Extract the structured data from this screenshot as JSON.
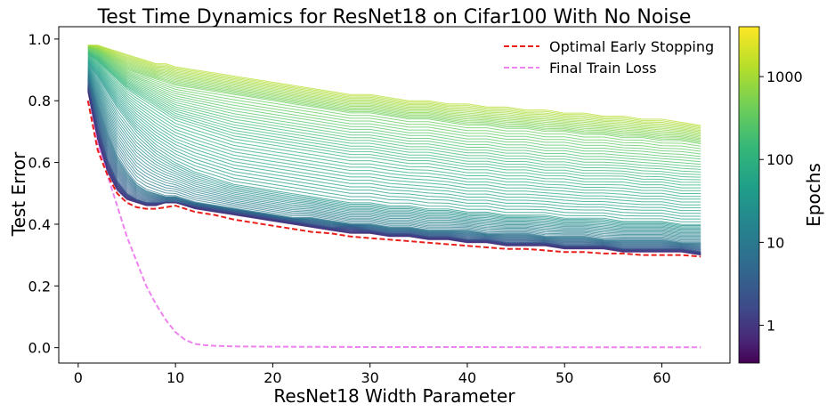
{
  "chart_data": {
    "type": "line",
    "title": "Test Time Dynamics for ResNet18 on Cifar100 With No Noise",
    "xlabel": "ResNet18 Width Parameter",
    "ylabel": "Test Error",
    "xlim": [
      -2,
      67
    ],
    "ylim": [
      -0.05,
      1.04
    ],
    "x_ticks": [
      0,
      10,
      20,
      30,
      40,
      50,
      60
    ],
    "x_tick_labels": [
      "0",
      "10",
      "20",
      "30",
      "40",
      "50",
      "60"
    ],
    "y_ticks": [
      0.0,
      0.2,
      0.4,
      0.6,
      0.8,
      1.0
    ],
    "y_tick_labels": [
      "0.0",
      "0.2",
      "0.4",
      "0.6",
      "0.8",
      "1.0"
    ],
    "grid": false,
    "legend": {
      "position": "top-right",
      "entries": [
        {
          "label": "Optimal Early Stopping",
          "color": "#e8211c",
          "style": "dashed"
        },
        {
          "label": "Final Train Loss",
          "color": "#ee82ee",
          "style": "dashed"
        }
      ]
    },
    "series": [
      {
        "name": "Optimal Early Stopping",
        "color": "#e8211c",
        "style": "dashed",
        "x": [
          1,
          2,
          3,
          4,
          5,
          6,
          7,
          8,
          9,
          10,
          12,
          14,
          16,
          18,
          20,
          22,
          24,
          26,
          28,
          30,
          32,
          34,
          36,
          38,
          40,
          42,
          44,
          46,
          48,
          50,
          52,
          54,
          56,
          58,
          60,
          62,
          64
        ],
        "values": [
          0.8,
          0.64,
          0.56,
          0.5,
          0.47,
          0.455,
          0.45,
          0.45,
          0.455,
          0.46,
          0.44,
          0.43,
          0.415,
          0.405,
          0.395,
          0.385,
          0.375,
          0.37,
          0.36,
          0.355,
          0.35,
          0.345,
          0.34,
          0.335,
          0.33,
          0.325,
          0.32,
          0.32,
          0.315,
          0.31,
          0.31,
          0.305,
          0.305,
          0.3,
          0.3,
          0.3,
          0.295
        ]
      },
      {
        "name": "Final Train Loss",
        "color": "#ee82ee",
        "style": "dashed",
        "x": [
          1,
          2,
          3,
          4,
          5,
          6,
          7,
          8,
          9,
          10,
          11,
          12,
          13,
          14,
          16,
          20,
          30,
          40,
          50,
          64
        ],
        "values": [
          0.8,
          0.66,
          0.56,
          0.46,
          0.36,
          0.28,
          0.2,
          0.14,
          0.09,
          0.05,
          0.025,
          0.012,
          0.008,
          0.006,
          0.004,
          0.003,
          0.002,
          0.002,
          0.001,
          0.001
        ]
      }
    ],
    "epoch_curves_x": [
      1,
      2,
      3,
      4,
      5,
      6,
      7,
      8,
      9,
      10,
      12,
      14,
      16,
      18,
      20,
      22,
      24,
      26,
      28,
      30,
      32,
      34,
      36,
      38,
      40,
      42,
      44,
      46,
      48,
      50,
      52,
      54,
      56,
      58,
      60,
      62,
      64
    ],
    "epoch_curves": [
      {
        "epochs": 1,
        "values": [
          0.98,
          0.98,
          0.97,
          0.96,
          0.95,
          0.94,
          0.93,
          0.92,
          0.92,
          0.91,
          0.9,
          0.89,
          0.88,
          0.87,
          0.86,
          0.85,
          0.84,
          0.83,
          0.82,
          0.82,
          0.81,
          0.8,
          0.8,
          0.79,
          0.79,
          0.78,
          0.78,
          0.77,
          0.77,
          0.76,
          0.76,
          0.75,
          0.75,
          0.74,
          0.74,
          0.73,
          0.72
        ]
      },
      {
        "epochs": 3,
        "values": [
          0.97,
          0.96,
          0.94,
          0.92,
          0.9,
          0.89,
          0.88,
          0.87,
          0.86,
          0.85,
          0.84,
          0.83,
          0.82,
          0.81,
          0.8,
          0.79,
          0.78,
          0.77,
          0.76,
          0.76,
          0.75,
          0.74,
          0.74,
          0.73,
          0.72,
          0.72,
          0.71,
          0.71,
          0.7,
          0.7,
          0.69,
          0.69,
          0.68,
          0.68,
          0.67,
          0.67,
          0.66
        ]
      },
      {
        "epochs": 10,
        "values": [
          0.95,
          0.93,
          0.9,
          0.87,
          0.84,
          0.82,
          0.8,
          0.78,
          0.76,
          0.74,
          0.72,
          0.7,
          0.68,
          0.67,
          0.66,
          0.65,
          0.64,
          0.63,
          0.62,
          0.62,
          0.61,
          0.6,
          0.6,
          0.59,
          0.58,
          0.58,
          0.57,
          0.57,
          0.56,
          0.56,
          0.55,
          0.55,
          0.55,
          0.54,
          0.54,
          0.53,
          0.53
        ]
      },
      {
        "epochs": 30,
        "values": [
          0.92,
          0.88,
          0.83,
          0.78,
          0.74,
          0.7,
          0.67,
          0.64,
          0.62,
          0.6,
          0.57,
          0.55,
          0.53,
          0.52,
          0.51,
          0.5,
          0.49,
          0.48,
          0.47,
          0.47,
          0.46,
          0.46,
          0.45,
          0.45,
          0.44,
          0.44,
          0.43,
          0.43,
          0.43,
          0.42,
          0.42,
          0.42,
          0.41,
          0.41,
          0.41,
          0.4,
          0.4
        ]
      },
      {
        "epochs": 100,
        "values": [
          0.88,
          0.79,
          0.7,
          0.62,
          0.57,
          0.53,
          0.51,
          0.5,
          0.49,
          0.49,
          0.47,
          0.46,
          0.45,
          0.44,
          0.43,
          0.42,
          0.42,
          0.41,
          0.4,
          0.4,
          0.39,
          0.39,
          0.38,
          0.38,
          0.38,
          0.37,
          0.37,
          0.37,
          0.36,
          0.36,
          0.36,
          0.35,
          0.35,
          0.35,
          0.35,
          0.34,
          0.34
        ]
      },
      {
        "epochs": 300,
        "values": [
          0.85,
          0.72,
          0.61,
          0.54,
          0.5,
          0.48,
          0.47,
          0.47,
          0.47,
          0.47,
          0.46,
          0.45,
          0.44,
          0.43,
          0.42,
          0.41,
          0.4,
          0.39,
          0.39,
          0.38,
          0.37,
          0.37,
          0.36,
          0.36,
          0.35,
          0.35,
          0.34,
          0.34,
          0.34,
          0.33,
          0.33,
          0.33,
          0.32,
          0.32,
          0.32,
          0.32,
          0.31
        ]
      },
      {
        "epochs": 1000,
        "values": [
          0.83,
          0.67,
          0.57,
          0.51,
          0.48,
          0.47,
          0.46,
          0.46,
          0.47,
          0.47,
          0.45,
          0.44,
          0.43,
          0.42,
          0.41,
          0.4,
          0.39,
          0.38,
          0.37,
          0.37,
          0.36,
          0.36,
          0.35,
          0.35,
          0.34,
          0.34,
          0.33,
          0.33,
          0.33,
          0.32,
          0.32,
          0.32,
          0.31,
          0.31,
          0.31,
          0.31,
          0.3
        ]
      }
    ],
    "colorbar": {
      "label": "Epochs",
      "scale": "log",
      "range": [
        0.35,
        4000
      ],
      "colormap": "viridis (reversed: 1 at top = yellow, large at bottom = dark purple)",
      "tick_values": [
        1,
        10,
        100,
        1000
      ],
      "tick_labels": [
        "1",
        "10",
        "100",
        "1000"
      ]
    }
  }
}
